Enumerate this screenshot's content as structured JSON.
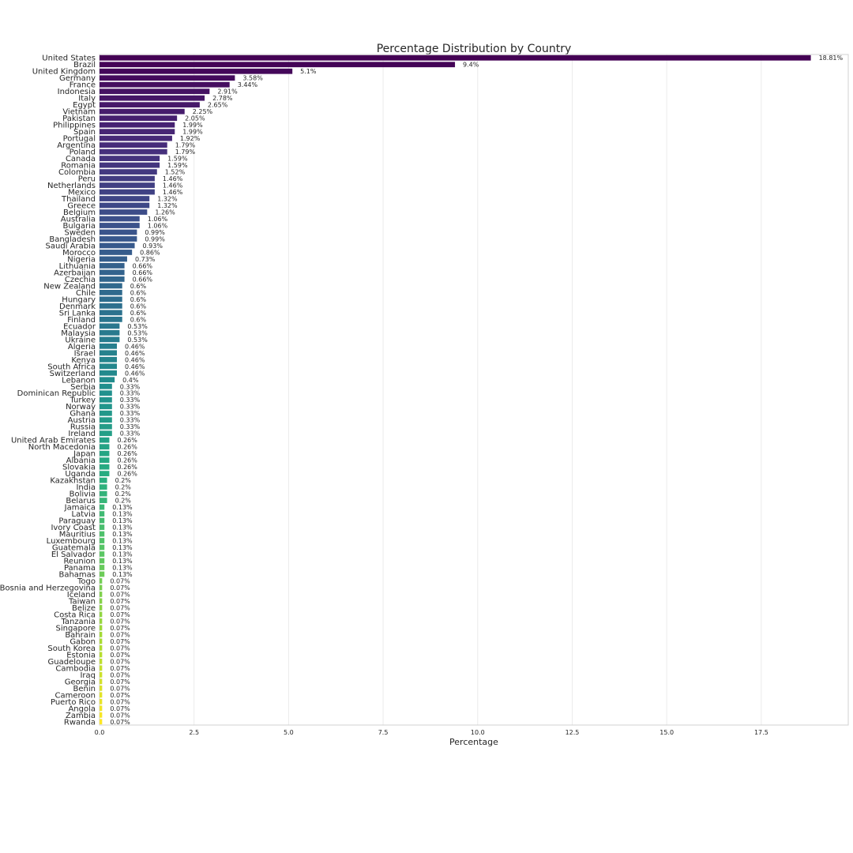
{
  "chart_data": {
    "type": "bar",
    "orientation": "horizontal",
    "title": "Percentage Distribution by Country",
    "xlabel": "Percentage",
    "ylabel": "",
    "xlim": [
      0,
      19.8
    ],
    "xticks": [
      "0.0",
      "2.5",
      "5.0",
      "7.5",
      "10.0",
      "12.5",
      "15.0",
      "17.5"
    ],
    "grid": true,
    "palette": "viridis",
    "categories": [
      "United States",
      "Brazil",
      "United Kingdom",
      "Germany",
      "France",
      "Indonesia",
      "Italy",
      "Egypt",
      "Vietnam",
      "Pakistan",
      "Philippines",
      "Spain",
      "Portugal",
      "Argentina",
      "Poland",
      "Canada",
      "Romania",
      "Colombia",
      "Peru",
      "Netherlands",
      "Mexico",
      "Thailand",
      "Greece",
      "Belgium",
      "Australia",
      "Bulgaria",
      "Sweden",
      "Bangladesh",
      "Saudi Arabia",
      "Morocco",
      "Nigeria",
      "Lithuania",
      "Azerbaijan",
      "Czechia",
      "New Zealand",
      "Chile",
      "Hungary",
      "Denmark",
      "Sri Lanka",
      "Finland",
      "Ecuador",
      "Malaysia",
      "Ukraine",
      "Algeria",
      "Israel",
      "Kenya",
      "South Africa",
      "Switzerland",
      "Lebanon",
      "Serbia",
      "Dominican Republic",
      "Turkey",
      "Norway",
      "Ghana",
      "Austria",
      "Russia",
      "Ireland",
      "United Arab Emirates",
      "North Macedonia",
      "Japan",
      "Albania",
      "Slovakia",
      "Uganda",
      "Kazakhstan",
      "India",
      "Bolivia",
      "Belarus",
      "Jamaica",
      "Latvia",
      "Paraguay",
      "Ivory Coast",
      "Mauritius",
      "Luxembourg",
      "Guatemala",
      "El Salvador",
      "Reunion",
      "Panama",
      "Bahamas",
      "Togo",
      "Bosnia and Herzegovina",
      "Iceland",
      "Taiwan",
      "Belize",
      "Costa Rica",
      "Tanzania",
      "Singapore",
      "Bahrain",
      "Gabon",
      "South Korea",
      "Estonia",
      "Guadeloupe",
      "Cambodia",
      "Iraq",
      "Georgia",
      "Benin",
      "Cameroon",
      "Puerto Rico",
      "Angola",
      "Zambia",
      "Rwanda"
    ],
    "values": [
      18.81,
      9.4,
      5.1,
      3.58,
      3.44,
      2.91,
      2.78,
      2.65,
      2.25,
      2.05,
      1.99,
      1.99,
      1.92,
      1.79,
      1.79,
      1.59,
      1.59,
      1.52,
      1.46,
      1.46,
      1.46,
      1.32,
      1.32,
      1.26,
      1.06,
      1.06,
      0.99,
      0.99,
      0.93,
      0.86,
      0.73,
      0.66,
      0.66,
      0.66,
      0.6,
      0.6,
      0.6,
      0.6,
      0.6,
      0.6,
      0.53,
      0.53,
      0.53,
      0.46,
      0.46,
      0.46,
      0.46,
      0.46,
      0.4,
      0.33,
      0.33,
      0.33,
      0.33,
      0.33,
      0.33,
      0.33,
      0.33,
      0.26,
      0.26,
      0.26,
      0.26,
      0.26,
      0.26,
      0.2,
      0.2,
      0.2,
      0.2,
      0.13,
      0.13,
      0.13,
      0.13,
      0.13,
      0.13,
      0.13,
      0.13,
      0.13,
      0.13,
      0.13,
      0.07,
      0.07,
      0.07,
      0.07,
      0.07,
      0.07,
      0.07,
      0.07,
      0.07,
      0.07,
      0.07,
      0.07,
      0.07,
      0.07,
      0.07,
      0.07,
      0.07,
      0.07,
      0.07,
      0.07,
      0.07,
      0.07
    ],
    "value_labels": [
      "18.81%",
      "9.4%",
      "5.1%",
      "3.58%",
      "3.44%",
      "2.91%",
      "2.78%",
      "2.65%",
      "2.25%",
      "2.05%",
      "1.99%",
      "1.99%",
      "1.92%",
      "1.79%",
      "1.79%",
      "1.59%",
      "1.59%",
      "1.52%",
      "1.46%",
      "1.46%",
      "1.46%",
      "1.32%",
      "1.32%",
      "1.26%",
      "1.06%",
      "1.06%",
      "0.99%",
      "0.99%",
      "0.93%",
      "0.86%",
      "0.73%",
      "0.66%",
      "0.66%",
      "0.66%",
      "0.6%",
      "0.6%",
      "0.6%",
      "0.6%",
      "0.6%",
      "0.6%",
      "0.53%",
      "0.53%",
      "0.53%",
      "0.46%",
      "0.46%",
      "0.46%",
      "0.46%",
      "0.46%",
      "0.4%",
      "0.33%",
      "0.33%",
      "0.33%",
      "0.33%",
      "0.33%",
      "0.33%",
      "0.33%",
      "0.33%",
      "0.26%",
      "0.26%",
      "0.26%",
      "0.26%",
      "0.26%",
      "0.26%",
      "0.2%",
      "0.2%",
      "0.2%",
      "0.2%",
      "0.13%",
      "0.13%",
      "0.13%",
      "0.13%",
      "0.13%",
      "0.13%",
      "0.13%",
      "0.13%",
      "0.13%",
      "0.13%",
      "0.13%",
      "0.07%",
      "0.07%",
      "0.07%",
      "0.07%",
      "0.07%",
      "0.07%",
      "0.07%",
      "0.07%",
      "0.07%",
      "0.07%",
      "0.07%",
      "0.07%",
      "0.07%",
      "0.07%",
      "0.07%",
      "0.07%",
      "0.07%",
      "0.07%",
      "0.07%",
      "0.07%",
      "0.07%",
      "0.07%"
    ]
  }
}
